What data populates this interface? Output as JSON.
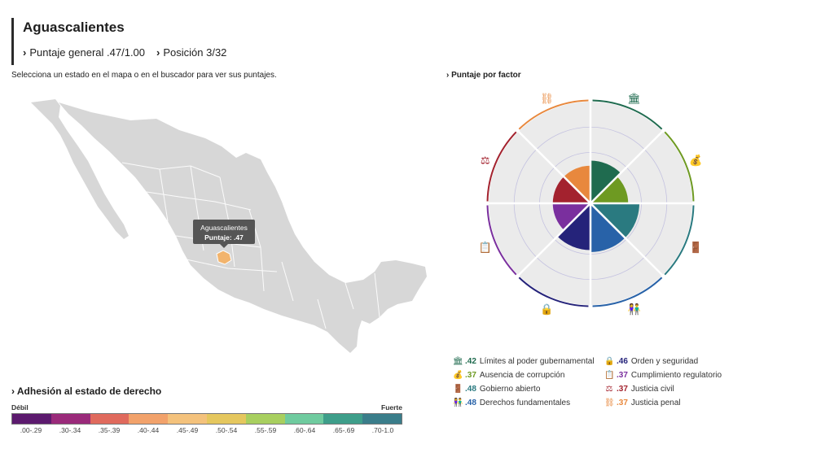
{
  "header": {
    "state": "Aguascalientes",
    "overall_score": "Puntaje general .47/1.00",
    "rank": "Posición 3/32"
  },
  "instructions": "Selecciona un estado en el mapa o en el buscador para ver sus puntajes.",
  "map": {
    "tooltip_state": "Aguascalientes",
    "tooltip_score": "Puntaje: .47",
    "base_color": "#d7d7d7",
    "selected_color": "#f2b46d"
  },
  "chart_data": {
    "type": "radial-bar",
    "title": "Puntaje por factor",
    "scale": [
      0,
      1
    ],
    "factors": [
      {
        "label": "Límites al poder gubernamental",
        "value": 0.42,
        "value_label": ".42",
        "color": "#1f6b4f",
        "icon": "government-building-icon",
        "glyph": "🏛"
      },
      {
        "label": "Ausencia de corrupción",
        "value": 0.37,
        "value_label": ".37",
        "color": "#6e9a22",
        "icon": "money-bag-icon",
        "glyph": "💰"
      },
      {
        "label": "Gobierno abierto",
        "value": 0.48,
        "value_label": ".48",
        "color": "#2a7a80",
        "icon": "open-door-icon",
        "glyph": "🚪"
      },
      {
        "label": "Derechos fundamentales",
        "value": 0.48,
        "value_label": ".48",
        "color": "#2862a8",
        "icon": "people-icon",
        "glyph": "👫"
      },
      {
        "label": "Orden y seguridad",
        "value": 0.46,
        "value_label": ".46",
        "color": "#25237a",
        "icon": "padlock-icon",
        "glyph": "🔒"
      },
      {
        "label": "Cumplimiento regulatorio",
        "value": 0.37,
        "value_label": ".37",
        "color": "#7a2f9e",
        "icon": "clipboard-icon",
        "glyph": "📋"
      },
      {
        "label": "Justicia civil",
        "value": 0.37,
        "value_label": ".37",
        "color": "#a3222e",
        "icon": "scales-icon",
        "glyph": "⚖"
      },
      {
        "label": "Justicia penal",
        "value": 0.37,
        "value_label": ".37",
        "color": "#e8883d",
        "icon": "handcuffs-icon",
        "glyph": "⛓"
      }
    ]
  },
  "legend_order": [
    0,
    4,
    1,
    5,
    2,
    6,
    3,
    7
  ],
  "scale_legend": {
    "title": "Adhesión al estado de derecho",
    "low": "Débil",
    "high": "Fuerte",
    "bins": [
      {
        "label": ".00-.29",
        "color": "#5c1a6e"
      },
      {
        "label": ".30-.34",
        "color": "#9a2a7a"
      },
      {
        "label": ".35-.39",
        "color": "#e06a5d"
      },
      {
        "label": ".40-.44",
        "color": "#f2a26b"
      },
      {
        "label": ".45-.49",
        "color": "#f4c27c"
      },
      {
        "label": ".50-.54",
        "color": "#e5c75e"
      },
      {
        "label": ".55-.59",
        "color": "#a8cf5f"
      },
      {
        "label": ".60-.64",
        "color": "#6fcb9f"
      },
      {
        "label": ".65-.69",
        "color": "#3e9e8a"
      },
      {
        "label": ".70-1.0",
        "color": "#3a7d8a"
      }
    ]
  }
}
